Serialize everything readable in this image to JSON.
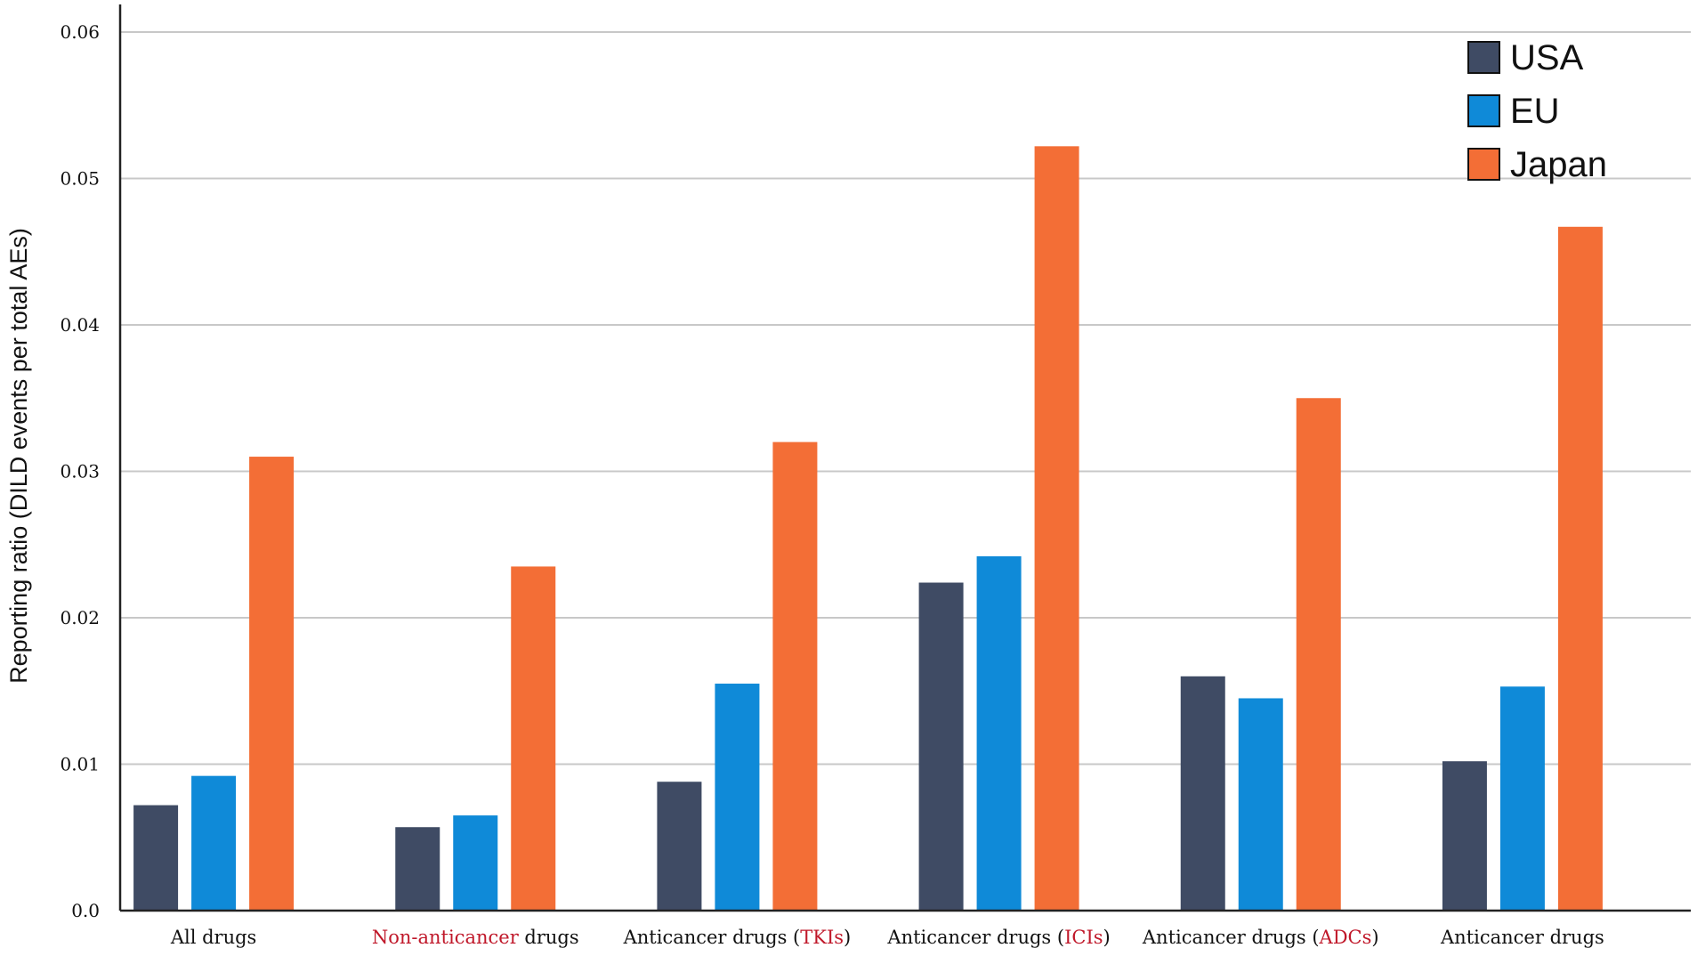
{
  "chart_data": {
    "type": "bar",
    "title": "",
    "xlabel": "",
    "ylabel": "Reporting ratio (DILD events per total AEs)",
    "ylim": [
      0,
      0.06
    ],
    "yticks": [
      "0.0",
      "0.01",
      "0.02",
      "0.03",
      "0.04",
      "0.05",
      "0.06"
    ],
    "grid": true,
    "legend_position": "top-right",
    "categories": [
      {
        "pre": "All drugs",
        "hl": "",
        "post": ""
      },
      {
        "pre": "",
        "hl": "Non-anticancer",
        "post": " drugs"
      },
      {
        "pre": "Anticancer drugs (",
        "hl": "TKIs",
        "post": ")"
      },
      {
        "pre": "Anticancer drugs (",
        "hl": "ICIs",
        "post": ")"
      },
      {
        "pre": "Anticancer drugs (",
        "hl": "ADCs",
        "post": ")"
      },
      {
        "pre": "Anticancer drugs",
        "hl": "",
        "post": ""
      }
    ],
    "series": [
      {
        "name": "USA",
        "color": "#3f4b64",
        "values": [
          0.0072,
          0.0057,
          0.0088,
          0.0224,
          0.016,
          0.0102
        ]
      },
      {
        "name": "EU",
        "color": "#0f8ad8",
        "values": [
          0.0092,
          0.0065,
          0.0155,
          0.0242,
          0.0145,
          0.0153
        ]
      },
      {
        "name": "Japan",
        "color": "#f36e36",
        "values": [
          0.031,
          0.0235,
          0.032,
          0.0522,
          0.035,
          0.0467
        ]
      }
    ]
  }
}
